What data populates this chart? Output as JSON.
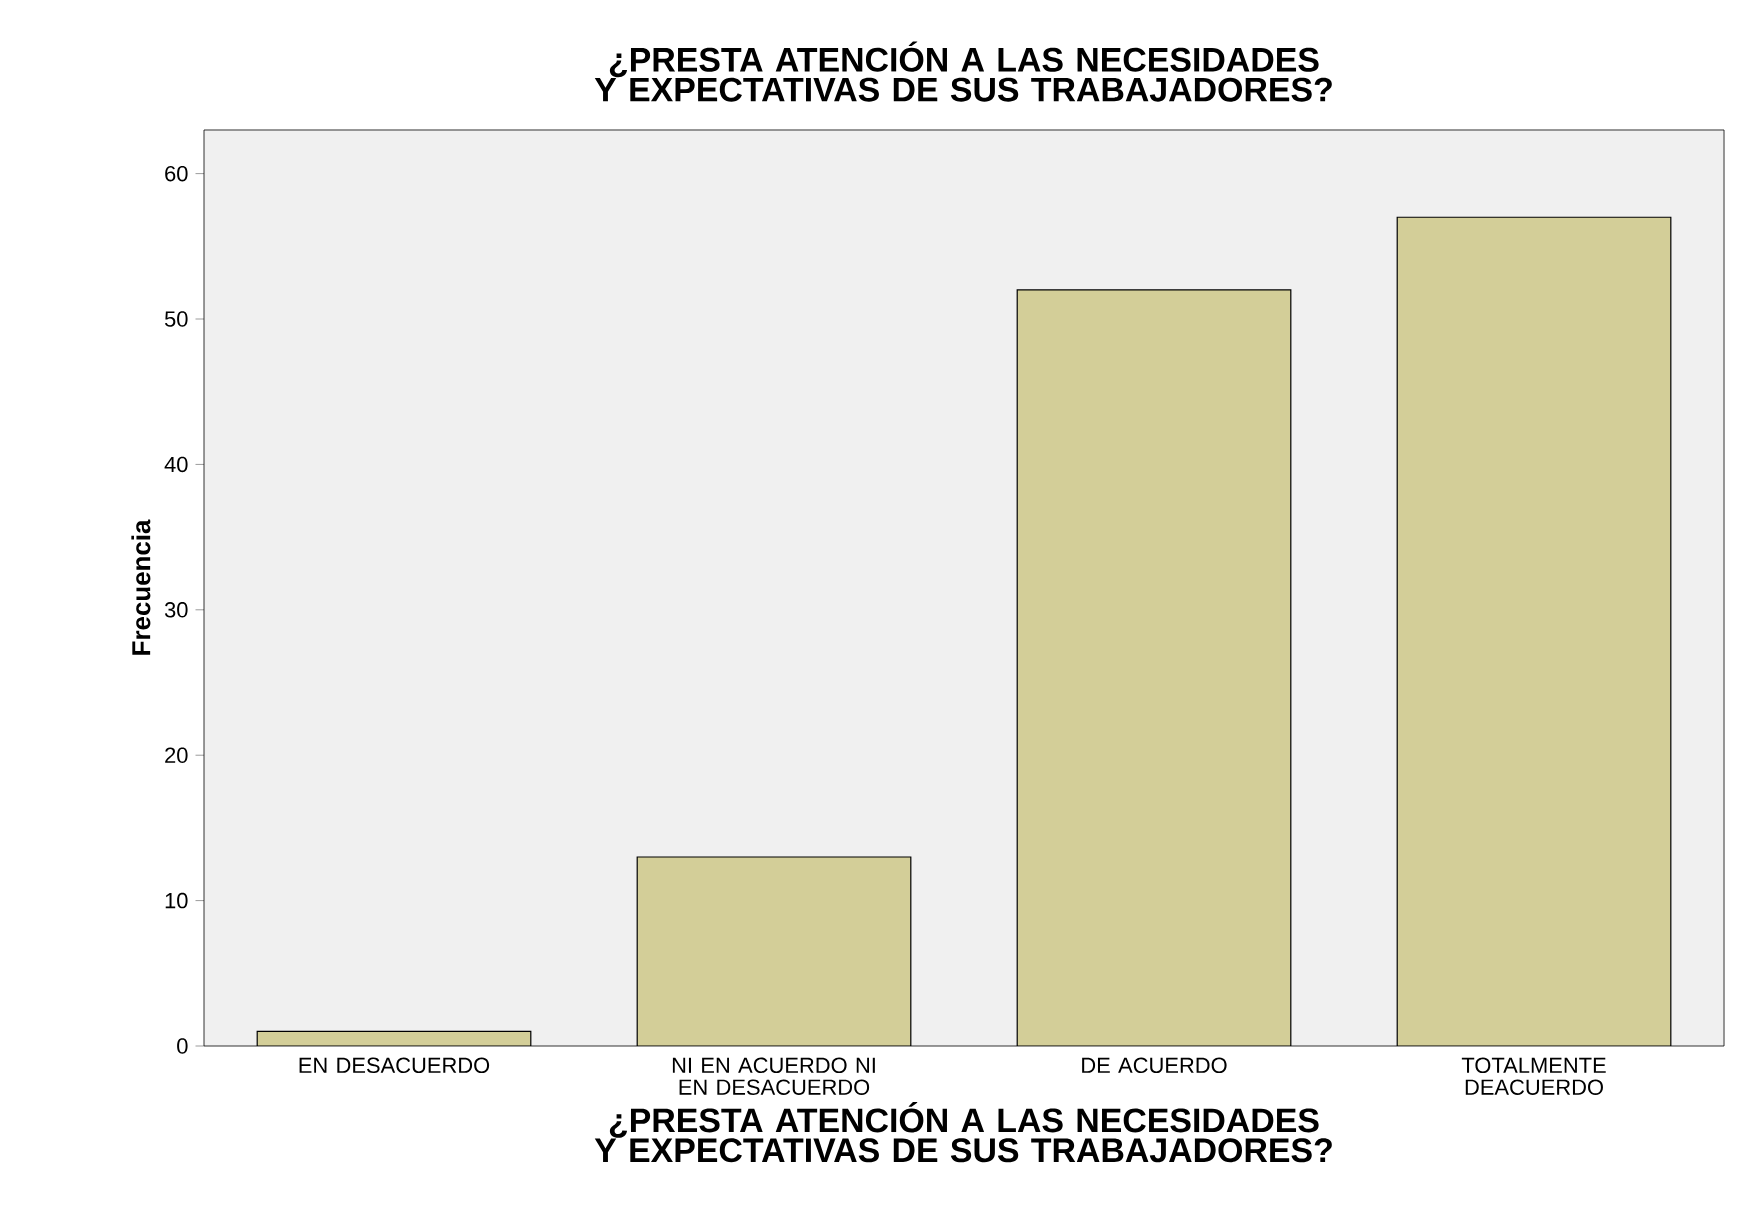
{
  "chart_data": {
    "type": "bar",
    "title": "¿PRESTA ATENCIÓN A LAS NECESIDADES Y EXPECTATIVAS DE SUS TRABAJADORES?",
    "xlabel": "¿PRESTA ATENCIÓN A LAS NECESIDADES Y EXPECTATIVAS DE SUS TRABAJADORES?",
    "ylabel": "Frecuencia",
    "categories": [
      "EN DESACUERDO",
      "NI EN ACUERDO NI EN DESACUERDO",
      "DE ACUERDO",
      "TOTALMENTE DEACUERDO"
    ],
    "values": [
      1,
      13,
      52,
      57
    ],
    "color": "#d3ce98",
    "ylim": [
      0,
      63
    ],
    "yticks": [
      0,
      10,
      20,
      30,
      40,
      50,
      60
    ],
    "grid": false
  }
}
